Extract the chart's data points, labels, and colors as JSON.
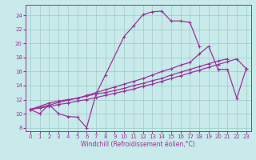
{
  "xlabel": "Windchill (Refroidissement éolien,°C)",
  "bg_color": "#c8eaea",
  "line_color": "#993399",
  "grid_color": "#a0c8c8",
  "xlim": [
    -0.5,
    23.5
  ],
  "ylim": [
    7.5,
    25.5
  ],
  "xticks": [
    0,
    1,
    2,
    3,
    4,
    5,
    6,
    7,
    8,
    9,
    10,
    11,
    12,
    13,
    14,
    15,
    16,
    17,
    18,
    19,
    20,
    21,
    22,
    23
  ],
  "yticks": [
    8,
    10,
    12,
    14,
    16,
    18,
    20,
    22,
    24
  ],
  "line1_x": [
    0,
    1,
    2,
    3,
    4,
    5,
    6,
    7,
    8,
    10,
    11,
    12,
    13,
    14,
    15,
    16,
    17,
    18
  ],
  "line1_y": [
    10.6,
    10.0,
    11.3,
    10.0,
    9.6,
    9.5,
    8.0,
    12.8,
    15.5,
    21.0,
    22.5,
    24.1,
    24.5,
    24.6,
    23.2,
    23.2,
    23.0,
    19.6
  ],
  "line2_x": [
    0,
    2,
    3,
    4,
    5,
    6,
    7,
    8,
    9,
    10,
    11,
    12,
    13,
    14,
    15,
    16,
    17,
    18,
    19,
    20,
    21
  ],
  "line2_y": [
    10.6,
    11.5,
    11.8,
    12.0,
    12.2,
    12.5,
    12.8,
    13.0,
    13.3,
    13.6,
    14.0,
    14.3,
    14.7,
    15.0,
    15.5,
    15.9,
    16.3,
    16.7,
    17.1,
    17.5,
    17.8
  ],
  "line3_x": [
    0,
    2,
    3,
    4,
    5,
    6,
    7,
    8,
    9,
    10,
    11,
    12,
    13,
    14,
    15,
    16,
    17,
    18,
    19,
    20,
    21,
    22,
    23
  ],
  "line3_y": [
    10.6,
    11.2,
    11.6,
    11.9,
    12.2,
    12.6,
    13.0,
    13.4,
    13.8,
    14.2,
    14.6,
    15.0,
    15.5,
    16.0,
    16.4,
    16.9,
    17.3,
    18.5,
    19.6,
    16.3,
    16.3,
    12.2,
    16.4
  ],
  "line4_x": [
    0,
    1,
    2,
    3,
    4,
    5,
    6,
    7,
    8,
    9,
    10,
    11,
    12,
    13,
    14,
    15,
    16,
    17,
    18,
    19,
    20,
    21,
    22,
    23
  ],
  "line4_y": [
    10.6,
    10.8,
    11.0,
    11.3,
    11.5,
    11.8,
    12.0,
    12.3,
    12.6,
    12.9,
    13.2,
    13.5,
    13.9,
    14.2,
    14.6,
    15.0,
    15.4,
    15.8,
    16.2,
    16.6,
    17.0,
    17.4,
    17.8,
    16.4
  ],
  "markersize": 2.5,
  "linewidth": 0.9
}
